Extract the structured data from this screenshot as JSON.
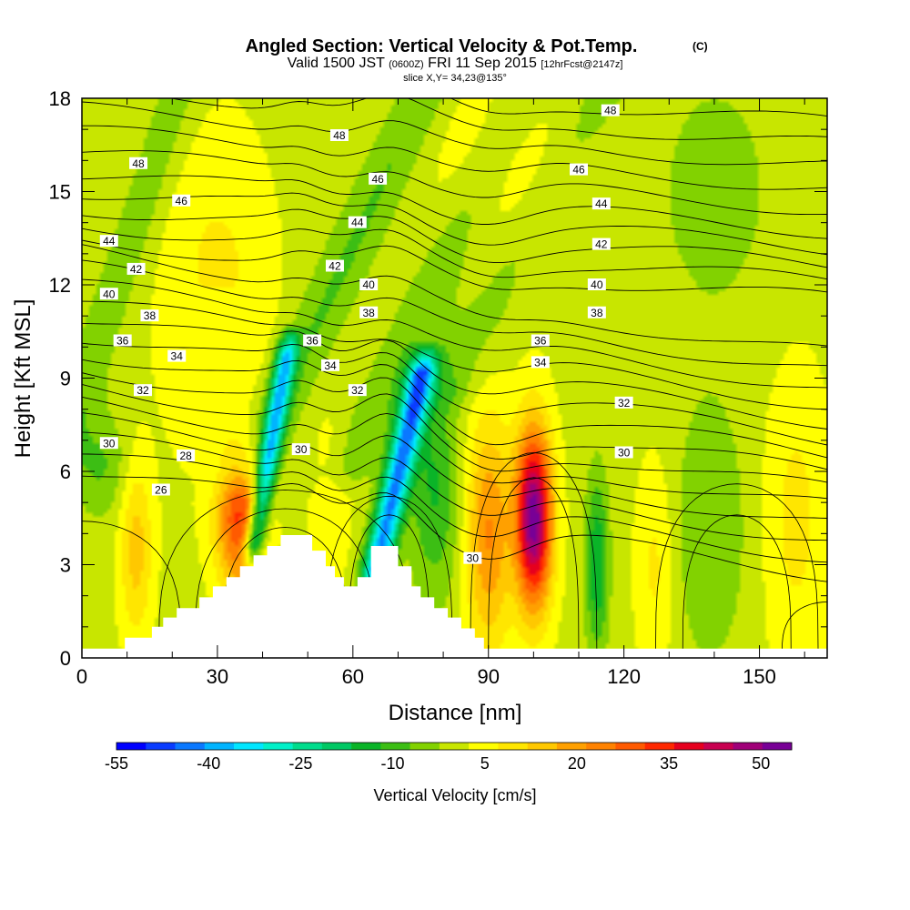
{
  "title": {
    "main": "Angled Section: Vertical Velocity & Pot.Temp.",
    "main_unit": "(C)",
    "valid_prefix": "Valid 1500 JST",
    "valid_zulu": "(0600Z)",
    "valid_date": "FRI 11 Sep 2015",
    "forecast": "[12hrFcst@2147z]",
    "slice": "slice X,Y= 34,23@135°"
  },
  "chart_data": {
    "type": "heatmap",
    "xlabel": "Distance [nm]",
    "ylabel": "Height [Kft MSL]",
    "xlim": [
      0,
      165
    ],
    "ylim": [
      0,
      18
    ],
    "x_ticks": [
      0,
      30,
      60,
      90,
      120,
      150
    ],
    "y_ticks": [
      0,
      3,
      6,
      9,
      12,
      15,
      18
    ],
    "field": "Vertical Velocity [cm/s]",
    "colorbar": {
      "label": "Vertical Velocity [cm/s]",
      "tick_labels": [
        "-55",
        "-40",
        "-25",
        "-10",
        "5",
        "20",
        "35",
        "50"
      ],
      "tick_values": [
        -55,
        -40,
        -25,
        -10,
        5,
        20,
        35,
        50
      ],
      "levels": [
        -55,
        -50,
        -45,
        -40,
        -35,
        -30,
        -25,
        -20,
        -15,
        -10,
        -5,
        0,
        5,
        10,
        15,
        20,
        25,
        30,
        35,
        40,
        45,
        50,
        55
      ],
      "colors": [
        "#0000ff",
        "#0a3cff",
        "#0a78ff",
        "#00b4ff",
        "#00e6ff",
        "#00f0c8",
        "#00dc8c",
        "#00c864",
        "#0ab428",
        "#3cbe14",
        "#82d200",
        "#c8e600",
        "#ffff00",
        "#ffe600",
        "#ffc800",
        "#ffa000",
        "#ff8200",
        "#ff5a00",
        "#ff2800",
        "#e6001e",
        "#c80050",
        "#a00078",
        "#780096"
      ]
    },
    "terrain_profile": [
      [
        0,
        0.3
      ],
      [
        9.5,
        0.3
      ],
      [
        9.5,
        0.65
      ],
      [
        15,
        0.65
      ],
      [
        15,
        0.65
      ],
      [
        15.5,
        0.65
      ],
      [
        15.5,
        1.0
      ],
      [
        18,
        1.0
      ],
      [
        18,
        1.3
      ],
      [
        21,
        1.3
      ],
      [
        21,
        1.6
      ],
      [
        26,
        1.6
      ],
      [
        26,
        1.95
      ],
      [
        29,
        1.95
      ],
      [
        29,
        2.3
      ],
      [
        32,
        2.3
      ],
      [
        32,
        2.6
      ],
      [
        35,
        2.6
      ],
      [
        35,
        2.95
      ],
      [
        38,
        2.95
      ],
      [
        38,
        3.3
      ],
      [
        41,
        3.3
      ],
      [
        41,
        3.6
      ],
      [
        44,
        3.6
      ],
      [
        44,
        3.95
      ],
      [
        51,
        3.95
      ],
      [
        51,
        3.45
      ],
      [
        54,
        3.45
      ],
      [
        54,
        2.95
      ],
      [
        56,
        2.95
      ],
      [
        56,
        2.6
      ],
      [
        58,
        2.6
      ],
      [
        58,
        2.3
      ],
      [
        61,
        2.3
      ],
      [
        61,
        2.6
      ],
      [
        64,
        2.6
      ],
      [
        64,
        3.6
      ],
      [
        70,
        3.6
      ],
      [
        70,
        2.95
      ],
      [
        73,
        2.95
      ],
      [
        73,
        2.3
      ],
      [
        75,
        2.3
      ],
      [
        75,
        1.95
      ],
      [
        78,
        1.95
      ],
      [
        78,
        1.6
      ],
      [
        81,
        1.6
      ],
      [
        81,
        1.3
      ],
      [
        84,
        1.3
      ],
      [
        84,
        0.95
      ],
      [
        87,
        0.95
      ],
      [
        87,
        0.65
      ],
      [
        89,
        0.65
      ],
      [
        89,
        0.3
      ],
      [
        165,
        0.3
      ]
    ],
    "w_features": [
      {
        "x": 100,
        "y": 4.5,
        "sx": 2.8,
        "sy": 2.0,
        "value": 55
      },
      {
        "x": 90,
        "y": 4.0,
        "sx": 3.5,
        "sy": 2.6,
        "value": 22
      },
      {
        "x": 35,
        "y": 4.4,
        "sx": 3.6,
        "sy": 1.6,
        "value": 32
      },
      {
        "x": 4,
        "y": 6.2,
        "sx": 4.5,
        "sy": 1.2,
        "value": -9
      },
      {
        "x": 12,
        "y": 3.5,
        "sx": 2.5,
        "sy": 2.0,
        "value": 14
      },
      {
        "x": 114,
        "y": 3.0,
        "sx": 1.8,
        "sy": 2.0,
        "value": -18
      },
      {
        "x": 127,
        "y": 3.0,
        "sx": 3.0,
        "sy": 2.4,
        "value": 8
      },
      {
        "x": 139,
        "y": 4.0,
        "sx": 6,
        "sy": 3.0,
        "value": -8
      },
      {
        "x": 158,
        "y": 4.5,
        "sx": 5,
        "sy": 3.5,
        "value": 8
      },
      {
        "x": 30,
        "y": 11.5,
        "sx": 8,
        "sy": 3.5,
        "value": 9
      },
      {
        "x": 95,
        "y": 16.0,
        "sx": 12,
        "sy": 2.5,
        "value": 6
      },
      {
        "x": 140,
        "y": 15.0,
        "sx": 12,
        "sy": 3.5,
        "value": -5
      },
      {
        "x": 30,
        "y": 9.5,
        "sx": 4,
        "sy": 2.0,
        "value": -5
      },
      {
        "x": 78,
        "y": 5.5,
        "sx": 4,
        "sy": 2.5,
        "value": -14
      },
      {
        "x": 55,
        "y": 5.0,
        "sx": 3,
        "sy": 2.0,
        "value": 6
      }
    ],
    "w_bands": [
      {
        "x0": 44,
        "y0": 8.6,
        "slope": 1.2,
        "w": 1.6,
        "y_low": 3.6,
        "y_high": 9.8,
        "value": -36
      },
      {
        "x0": 72.5,
        "y0": 7.5,
        "slope": 1.6,
        "w": 2.2,
        "y_low": 2.8,
        "y_high": 9.2,
        "value": -44
      },
      {
        "x0": 48,
        "y0": 9.5,
        "slope": 3.2,
        "w": 4.5,
        "y_low": 6.0,
        "y_high": 18.5,
        "value": -9
      },
      {
        "x0": 70,
        "y0": 9.5,
        "slope": 3.2,
        "w": 4.5,
        "y_low": 6.0,
        "y_high": 18.5,
        "value": -7
      },
      {
        "x0": 12,
        "y0": 14,
        "slope": 2.2,
        "w": 3.5,
        "y_low": 6.0,
        "y_high": 18.5,
        "value": -7
      },
      {
        "x0": 100,
        "y0": 14,
        "slope": 3.5,
        "w": 5,
        "y_low": 8.5,
        "y_high": 18.5,
        "value": -6
      }
    ],
    "theta_levels": [
      26,
      27,
      28,
      29,
      30,
      31,
      32,
      33,
      34,
      35,
      36,
      37,
      38,
      39,
      40,
      41,
      42,
      43,
      44,
      45,
      46,
      47,
      48,
      49
    ],
    "contour_labels": [
      {
        "text": "48",
        "x": 117,
        "y": 17.6
      },
      {
        "text": "48",
        "x": 57,
        "y": 16.8
      },
      {
        "text": "48",
        "x": 12.5,
        "y": 15.9
      },
      {
        "text": "46",
        "x": 110,
        "y": 15.7
      },
      {
        "text": "46",
        "x": 65.5,
        "y": 15.4
      },
      {
        "text": "46",
        "x": 22,
        "y": 14.7
      },
      {
        "text": "44",
        "x": 115,
        "y": 14.6
      },
      {
        "text": "44",
        "x": 61,
        "y": 14.0
      },
      {
        "text": "44",
        "x": 6,
        "y": 13.4
      },
      {
        "text": "42",
        "x": 115,
        "y": 13.3
      },
      {
        "text": "42",
        "x": 56,
        "y": 12.6
      },
      {
        "text": "42",
        "x": 12,
        "y": 12.5
      },
      {
        "text": "40",
        "x": 114,
        "y": 12.0
      },
      {
        "text": "40",
        "x": 63.5,
        "y": 12.0
      },
      {
        "text": "40",
        "x": 6,
        "y": 11.7
      },
      {
        "text": "38",
        "x": 114,
        "y": 11.1
      },
      {
        "text": "38",
        "x": 63.5,
        "y": 11.1
      },
      {
        "text": "38",
        "x": 15,
        "y": 11.0
      },
      {
        "text": "36",
        "x": 101.5,
        "y": 10.2
      },
      {
        "text": "36",
        "x": 51,
        "y": 10.2
      },
      {
        "text": "36",
        "x": 9,
        "y": 10.2
      },
      {
        "text": "34",
        "x": 101.5,
        "y": 9.5
      },
      {
        "text": "34",
        "x": 55,
        "y": 9.4
      },
      {
        "text": "34",
        "x": 21,
        "y": 9.7
      },
      {
        "text": "32",
        "x": 120,
        "y": 8.2
      },
      {
        "text": "32",
        "x": 61,
        "y": 8.6
      },
      {
        "text": "32",
        "x": 13.5,
        "y": 8.6
      },
      {
        "text": "30",
        "x": 120,
        "y": 6.6
      },
      {
        "text": "30",
        "x": 48.5,
        "y": 6.7
      },
      {
        "text": "30",
        "x": 6,
        "y": 6.9
      },
      {
        "text": "30",
        "x": 86.5,
        "y": 3.2
      },
      {
        "text": "28",
        "x": 23,
        "y": 6.5
      },
      {
        "text": "26",
        "x": 17.5,
        "y": 5.4
      }
    ]
  }
}
